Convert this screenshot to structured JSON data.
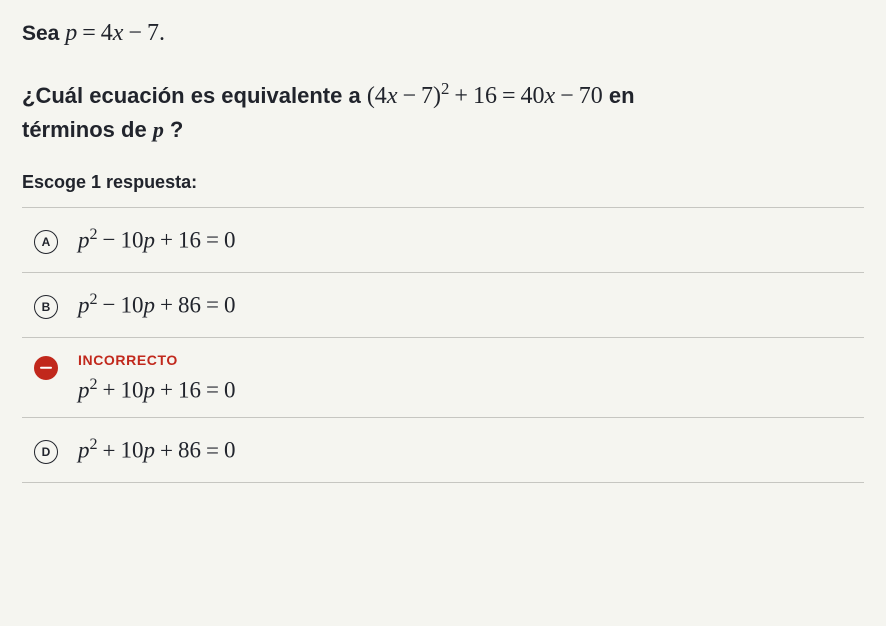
{
  "intro": {
    "label": "Sea",
    "expr_html": "<span class='mi'>p</span><span class='op'>=</span>4<span class='mi'>x</span><span class='op'>−</span>7."
  },
  "question": {
    "part1": "¿Cuál ecuación es equivalente a",
    "expr_html": "(4<span class='mi'>x</span><span class='op'>−</span>7)<span class='sup'>2</span><span class='op'>+</span>16<span class='op'>=</span>40<span class='mi'>x</span><span class='op'>−</span>70",
    "part2": "en",
    "part3_html": "términos de <span class='math mi' style='font-size:22px'>p</span> ?"
  },
  "instruction": "Escoge 1 respuesta:",
  "feedback_label": "INCORRECTO",
  "colors": {
    "incorrect": "#c1281c",
    "text": "#21242c",
    "divider": "#c6c6c1",
    "bg": "#f5f5f0"
  },
  "choices": [
    {
      "letter": "A",
      "selected": false,
      "feedback": false,
      "expr_html": "<span class='mi'>p</span><span class='sup'>2</span><span class='op'>−</span>10<span class='mi'>p</span><span class='op'>+</span>16<span class='op'>=</span>0"
    },
    {
      "letter": "B",
      "selected": false,
      "feedback": false,
      "expr_html": "<span class='mi'>p</span><span class='sup'>2</span><span class='op'>−</span>10<span class='mi'>p</span><span class='op'>+</span>86<span class='op'>=</span>0"
    },
    {
      "letter": "C",
      "selected": true,
      "feedback": true,
      "expr_html": "<span class='mi'>p</span><span class='sup'>2</span><span class='op'>+</span>10<span class='mi'>p</span><span class='op'>+</span>16<span class='op'>=</span>0"
    },
    {
      "letter": "D",
      "selected": false,
      "feedback": false,
      "expr_html": "<span class='mi'>p</span><span class='sup'>2</span><span class='op'>+</span>10<span class='mi'>p</span><span class='op'>+</span>86<span class='op'>=</span>0"
    }
  ]
}
